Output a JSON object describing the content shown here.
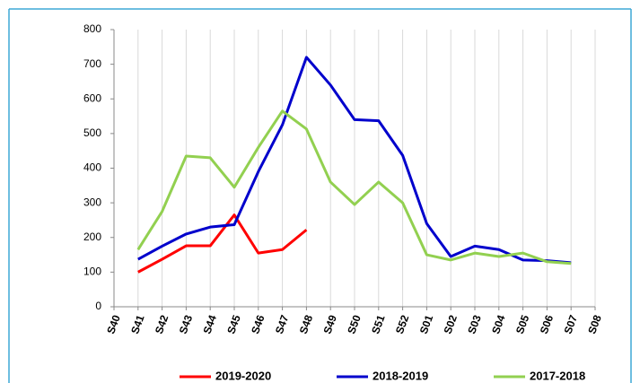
{
  "chart_data": {
    "type": "line",
    "categories": [
      "S40",
      "S41",
      "S42",
      "S43",
      "S44",
      "S45",
      "S46",
      "S47",
      "S48",
      "S49",
      "S50",
      "S51",
      "S52",
      "S01",
      "S02",
      "S03",
      "S04",
      "S05",
      "S06",
      "S07",
      "S08"
    ],
    "series": [
      {
        "name": "2019-2020",
        "color": "#ff0000",
        "values": [
          null,
          100,
          137,
          176,
          176,
          265,
          155,
          165,
          222,
          null,
          null,
          null,
          null,
          null,
          null,
          null,
          null,
          null,
          null,
          null,
          null
        ]
      },
      {
        "name": "2018-2019",
        "color": "#0000cc",
        "values": [
          null,
          137,
          175,
          210,
          230,
          237,
          390,
          525,
          720,
          640,
          540,
          537,
          437,
          240,
          145,
          175,
          165,
          135,
          133,
          127,
          null
        ]
      },
      {
        "name": "2017-2018",
        "color": "#92d050",
        "values": [
          null,
          165,
          275,
          435,
          430,
          345,
          460,
          565,
          513,
          360,
          295,
          360,
          300,
          150,
          135,
          155,
          145,
          155,
          130,
          125,
          null
        ]
      }
    ],
    "ylim": [
      0,
      800
    ],
    "yticks": [
      0,
      100,
      200,
      300,
      400,
      500,
      600,
      700,
      800
    ],
    "grid": "x",
    "legend": "bottom"
  }
}
